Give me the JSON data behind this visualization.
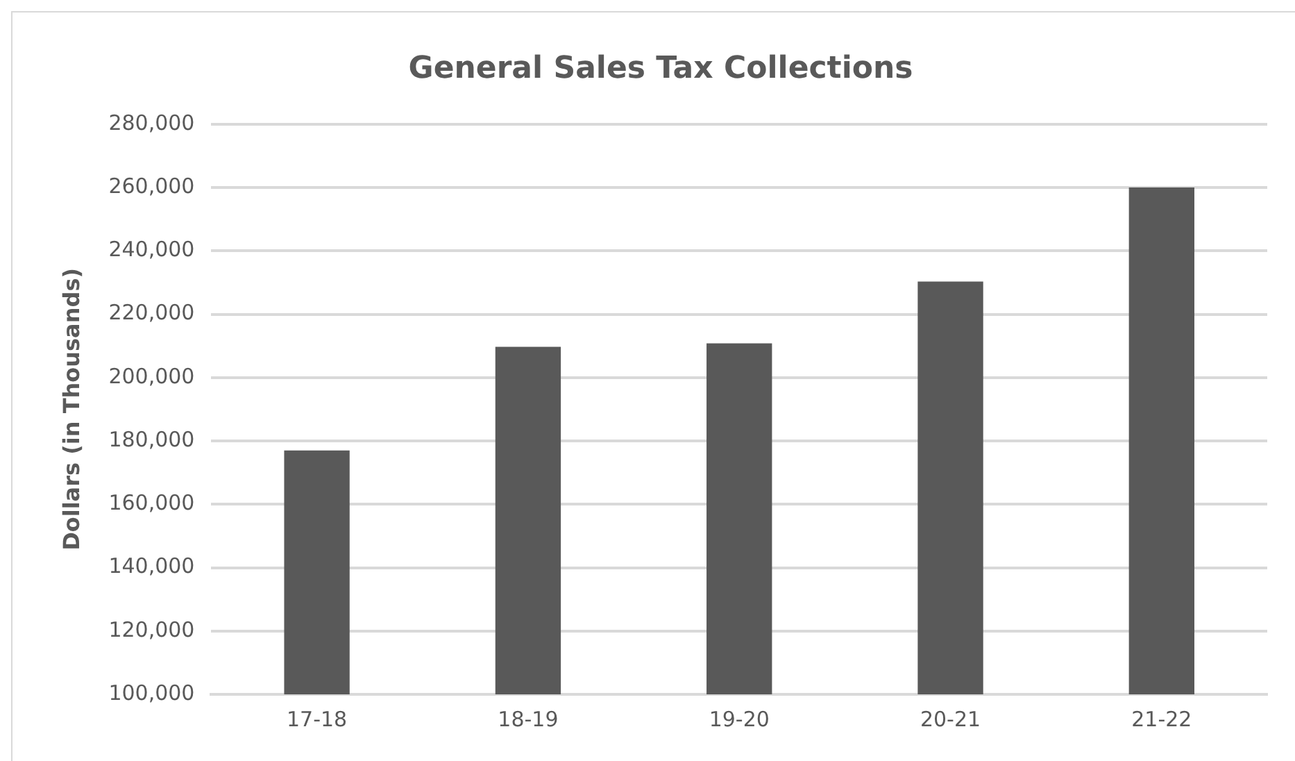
{
  "chart_data": {
    "type": "bar",
    "title": "General Sales Tax Collections",
    "ylabel": "Dollars (in Thousands)",
    "categories": [
      "17-18",
      "18-19",
      "19-20",
      "20-21",
      "21-22"
    ],
    "values": [
      177000,
      209700,
      210800,
      230300,
      260000
    ],
    "color": "#595959",
    "ylim": [
      100000,
      280000
    ],
    "yticks": [
      {
        "value": 100000,
        "label": "100,000"
      },
      {
        "value": 120000,
        "label": "120,000"
      },
      {
        "value": 140000,
        "label": "140,000"
      },
      {
        "value": 160000,
        "label": "160,000"
      },
      {
        "value": 180000,
        "label": "180,000"
      },
      {
        "value": 200000,
        "label": "200,000"
      },
      {
        "value": 220000,
        "label": "220,000"
      },
      {
        "value": 240000,
        "label": "240,000"
      },
      {
        "value": 260000,
        "label": "260,000"
      },
      {
        "value": 280000,
        "label": "280,000"
      }
    ],
    "grid": "y"
  }
}
